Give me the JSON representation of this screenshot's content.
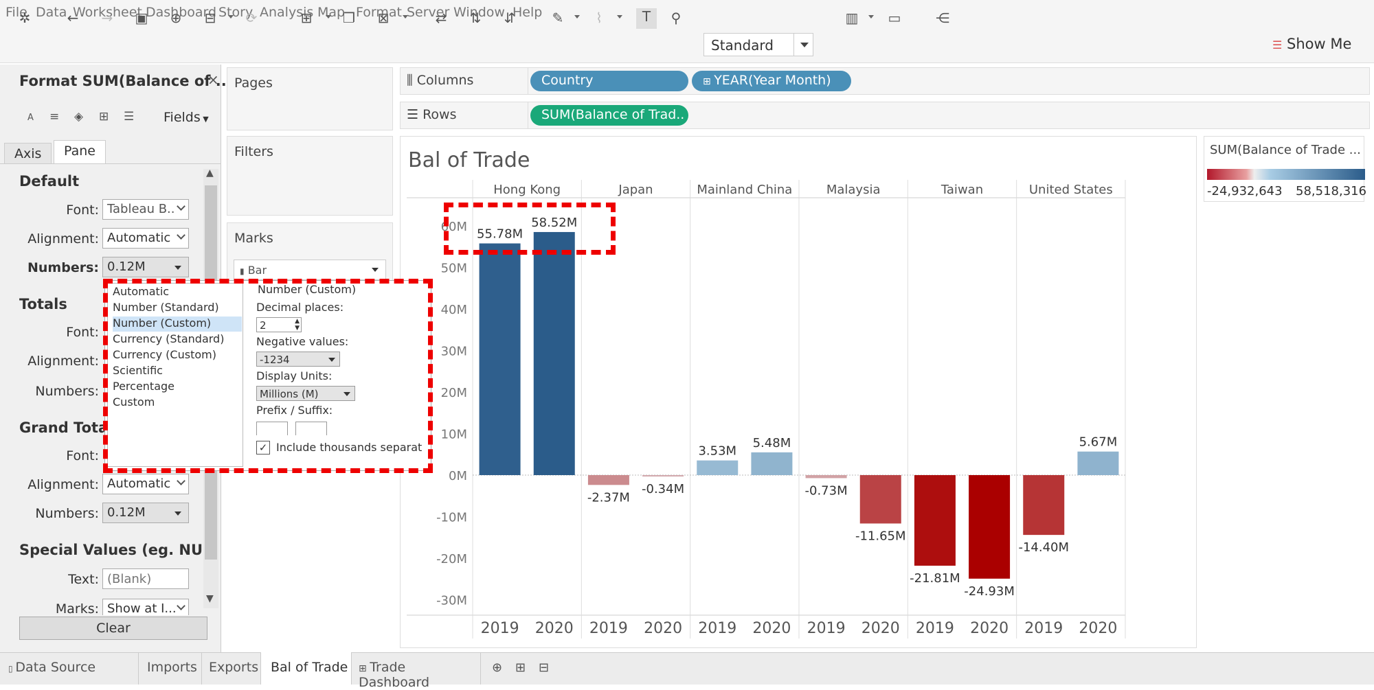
{
  "menu": [
    "File",
    "Data",
    "Worksheet",
    "Dashboard",
    "Story",
    "Analysis",
    "Map",
    "Format",
    "Server",
    "Window",
    "Help"
  ],
  "toolbar": {
    "mark_type_select": "Standard",
    "show_me": "Show Me"
  },
  "format_panel": {
    "title": "Format SUM(Balance of ...",
    "fields_label": "Fields",
    "tabs": [
      "Axis",
      "Pane"
    ],
    "default": {
      "heading": "Default",
      "font_label": "Font:",
      "font_value": "Tableau B..",
      "alignment_label": "Alignment:",
      "alignment_value": "Automatic",
      "numbers_label": "Numbers:",
      "numbers_value": "0.12M"
    },
    "totals": {
      "heading": "Totals",
      "font_label": "Font:",
      "alignment_label": "Alignment:",
      "numbers_label": "Numbers:"
    },
    "grand_totals": {
      "heading": "Grand Totals",
      "font_label": "Font:",
      "alignment_label": "Alignment:",
      "alignment_value": "Automatic",
      "numbers_label": "Numbers:",
      "numbers_value": "0.12M"
    },
    "special": {
      "heading": "Special Values (eg. NU...",
      "text_label": "Text:",
      "text_placeholder": "(Blank)",
      "marks_label": "Marks:",
      "marks_value": "Show at I..."
    },
    "clear_button": "Clear"
  },
  "number_format_popup": {
    "options": [
      "Automatic",
      "Number (Standard)",
      "Number (Custom)",
      "Currency (Standard)",
      "Currency (Custom)",
      "Scientific",
      "Percentage",
      "Custom"
    ],
    "selected": "Number (Custom)",
    "heading": "Number (Custom)",
    "decimal_label": "Decimal places:",
    "decimal_value": "2",
    "negative_label": "Negative values:",
    "negative_value": "-1234",
    "units_label": "Display Units:",
    "units_value": "Millions (M)",
    "prefix_label": "Prefix / Suffix:",
    "thousands_label": "Include thousands separat",
    "thousands_checked": true
  },
  "shelves": {
    "pages": "Pages",
    "filters": "Filters",
    "marks": "Marks",
    "marks_type": "Bar",
    "columns_label": "Columns",
    "rows_label": "Rows",
    "column_pills": [
      "Country",
      "YEAR(Year Month)"
    ],
    "row_pills": [
      "SUM(Balance of Trad.."
    ]
  },
  "legend": {
    "title": "SUM(Balance of Trade ...",
    "min": "-24,932,643",
    "max": "58,518,316",
    "colors": {
      "negative": "#b2182b",
      "positive": "#2b5c8a"
    }
  },
  "sheet_tabs": [
    "Data Source",
    "Imports",
    "Exports",
    "Bal of Trade",
    "Trade Dashboard"
  ],
  "active_tab": "Bal of Trade",
  "chart_data": {
    "type": "bar",
    "title": "Bal of Trade",
    "countries": [
      "Hong Kong",
      "Japan",
      "Mainland China",
      "Malaysia",
      "Taiwan",
      "United States"
    ],
    "years": [
      "2019",
      "2020"
    ],
    "values": [
      [
        55.78,
        58.52
      ],
      [
        -2.37,
        -0.34
      ],
      [
        3.53,
        5.48
      ],
      [
        -0.73,
        -11.65
      ],
      [
        -21.81,
        -24.93
      ],
      [
        -14.4,
        5.67
      ]
    ],
    "labels": [
      [
        "55.78M",
        "58.52M"
      ],
      [
        "-2.37M",
        "-0.34M"
      ],
      [
        "3.53M",
        "5.48M"
      ],
      [
        "-0.73M",
        "-11.65M"
      ],
      [
        "-21.81M",
        "-24.93M"
      ],
      [
        "-14.40M",
        "5.67M"
      ]
    ],
    "y_ticks": [
      "60M",
      "50M",
      "40M",
      "30M",
      "20M",
      "10M",
      "0M",
      "-10M",
      "-20M",
      "-30M"
    ],
    "y_tick_values": [
      60,
      50,
      40,
      30,
      20,
      10,
      0,
      -10,
      -20,
      -30
    ],
    "ylim": [
      -33,
      65
    ],
    "unit": "M"
  }
}
